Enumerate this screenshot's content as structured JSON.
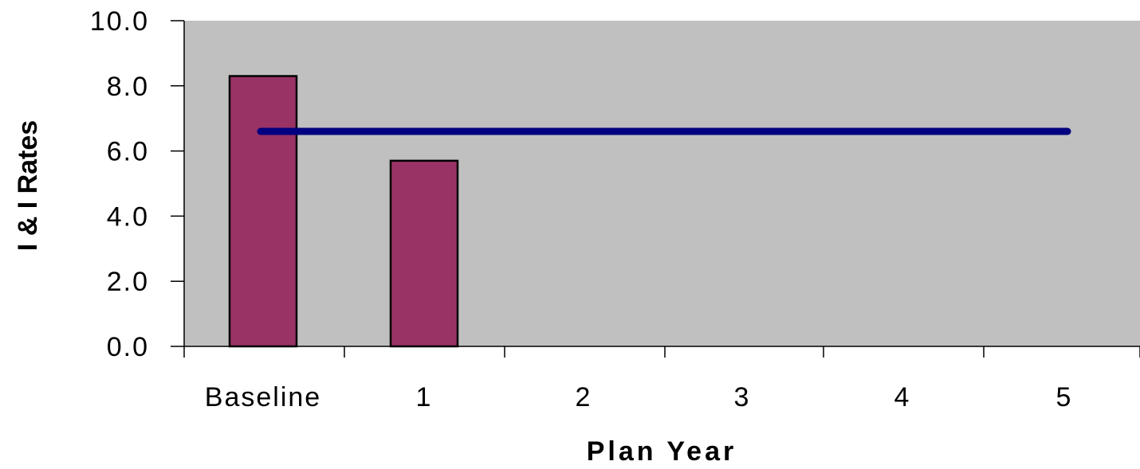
{
  "chart_data": {
    "type": "bar",
    "categories": [
      "Baseline",
      "1",
      "2",
      "3",
      "4",
      "5"
    ],
    "series": [
      {
        "type": "bar",
        "values": [
          8.3,
          5.7,
          null,
          null,
          null,
          null
        ]
      },
      {
        "type": "line",
        "values": [
          6.6,
          6.6,
          6.6,
          6.6,
          6.6,
          6.6
        ]
      }
    ],
    "xlabel": "Plan Year",
    "ylabel": "I & I Rates",
    "ylim": [
      0,
      10
    ],
    "yticks": [
      "0.0",
      "2.0",
      "4.0",
      "6.0",
      "8.0",
      "10.0"
    ],
    "grid": false,
    "legend": "none"
  },
  "colors": {
    "plot_background": "#c0c0c0",
    "bar_fill": "#993366",
    "line": "#000080"
  }
}
